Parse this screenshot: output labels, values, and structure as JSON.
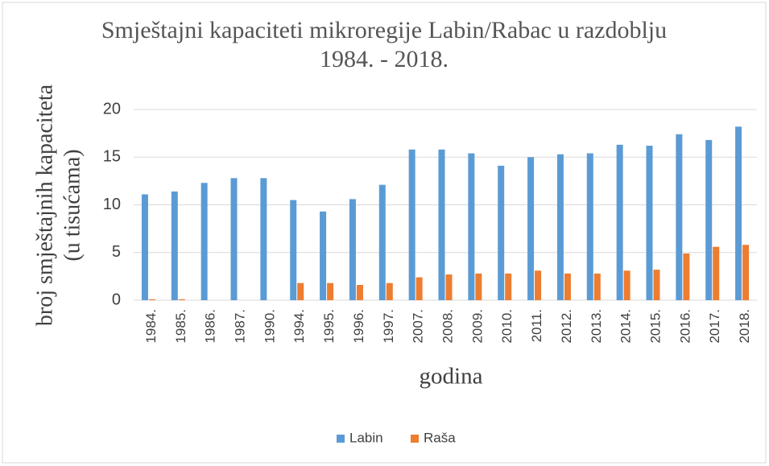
{
  "chart_data": {
    "type": "bar",
    "title": "Smještajni kapaciteti mikroregije  Labin/Rabac u razdoblju 1984. - 2018.",
    "ylabel": [
      "broj smještajnih kapaciteta",
      "(u tisućama)"
    ],
    "xlabel": "godina",
    "categories": [
      "1984.",
      "1985.",
      "1986.",
      "1987.",
      "1990.",
      "1994.",
      "1995.",
      "1996.",
      "1997.",
      "2007.",
      "2008.",
      "2009.",
      "2010.",
      "2011.",
      "2012.",
      "2013.",
      "2014.",
      "2015.",
      "2016.",
      "2017.",
      "2018."
    ],
    "series": [
      {
        "name": "Labin",
        "color": "#5b9bd5",
        "values": [
          11.1,
          11.4,
          12.3,
          12.8,
          12.8,
          10.5,
          9.3,
          10.6,
          12.1,
          15.8,
          15.8,
          15.4,
          14.1,
          15.0,
          15.3,
          15.4,
          16.3,
          16.2,
          17.4,
          16.8,
          18.2
        ]
      },
      {
        "name": "Raša",
        "color": "#ed7d31",
        "values": [
          0.1,
          0.1,
          0,
          0,
          0,
          1.8,
          1.8,
          1.6,
          1.8,
          2.4,
          2.7,
          2.8,
          2.8,
          3.1,
          2.8,
          2.8,
          3.1,
          3.2,
          4.9,
          5.6,
          5.8
        ]
      }
    ],
    "ylim": [
      0,
      20
    ],
    "yticks": [
      0,
      5,
      10,
      15,
      20
    ],
    "grid": true,
    "legend": "bottom"
  }
}
